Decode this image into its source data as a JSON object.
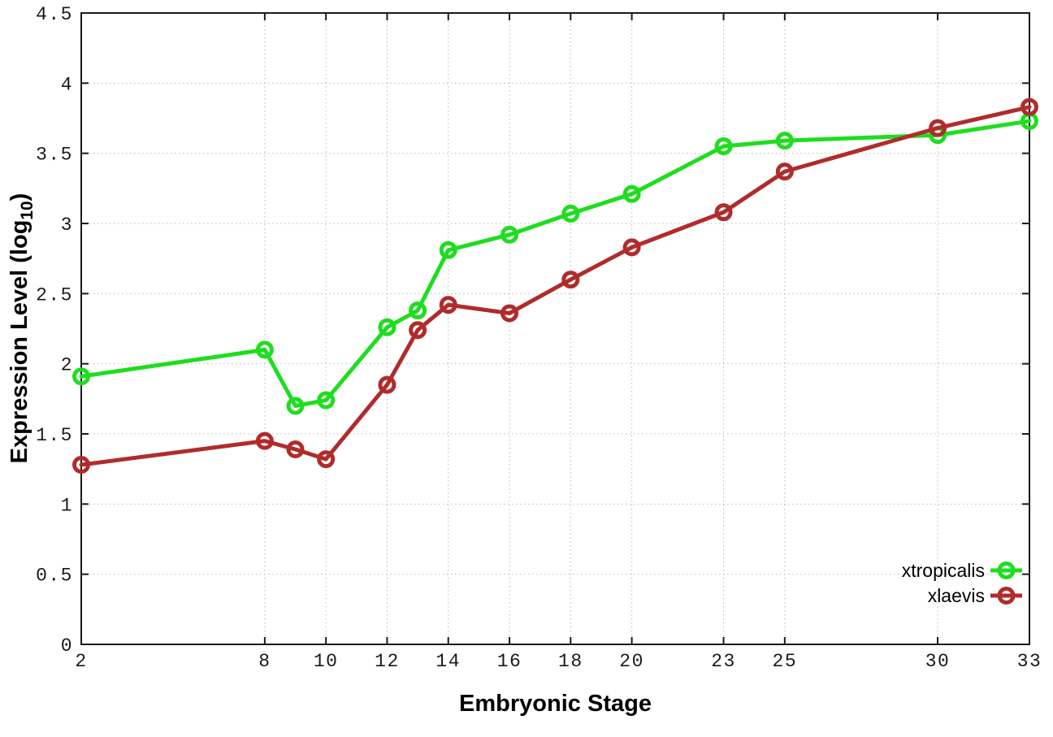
{
  "chart_data": {
    "type": "line",
    "title": "",
    "xlabel": "Embryonic Stage",
    "ylabel": "Expression Level (log10)",
    "ylabel_rich": {
      "prefix": "Expression Level (log",
      "sub": "10",
      "suffix": ")"
    },
    "x": [
      2,
      8,
      9,
      10,
      12,
      13,
      14,
      16,
      18,
      20,
      23,
      25,
      30,
      33
    ],
    "xticks": [
      2,
      8,
      10,
      12,
      14,
      16,
      18,
      20,
      23,
      25,
      30,
      33
    ],
    "yticks": [
      0,
      0.5,
      1,
      1.5,
      2,
      2.5,
      3,
      3.5,
      4,
      4.5
    ],
    "xlim": [
      2,
      33
    ],
    "ylim": [
      0,
      4.5
    ],
    "grid": true,
    "grid_style": "dotted",
    "legend_position": "inside-bottom-right",
    "series": [
      {
        "name": "xtropicalis",
        "color": "#1fdd1f",
        "marker": "open-circle",
        "values": [
          1.91,
          2.1,
          1.7,
          1.74,
          2.26,
          2.38,
          2.81,
          2.92,
          3.07,
          3.21,
          3.55,
          3.59,
          3.63,
          3.73
        ]
      },
      {
        "name": "xlaevis",
        "color": "#b02c2c",
        "marker": "open-circle",
        "values": [
          1.28,
          1.45,
          1.39,
          1.32,
          1.85,
          2.24,
          2.42,
          2.36,
          2.6,
          2.83,
          3.08,
          3.37,
          3.68,
          3.83
        ]
      }
    ]
  },
  "style": {
    "background": "#ffffff",
    "axis_color": "#1a1a1a",
    "grid_color": "#b8b8b8",
    "tick_text_color": "#1a1a1a",
    "legend_text_color": "#000000"
  }
}
